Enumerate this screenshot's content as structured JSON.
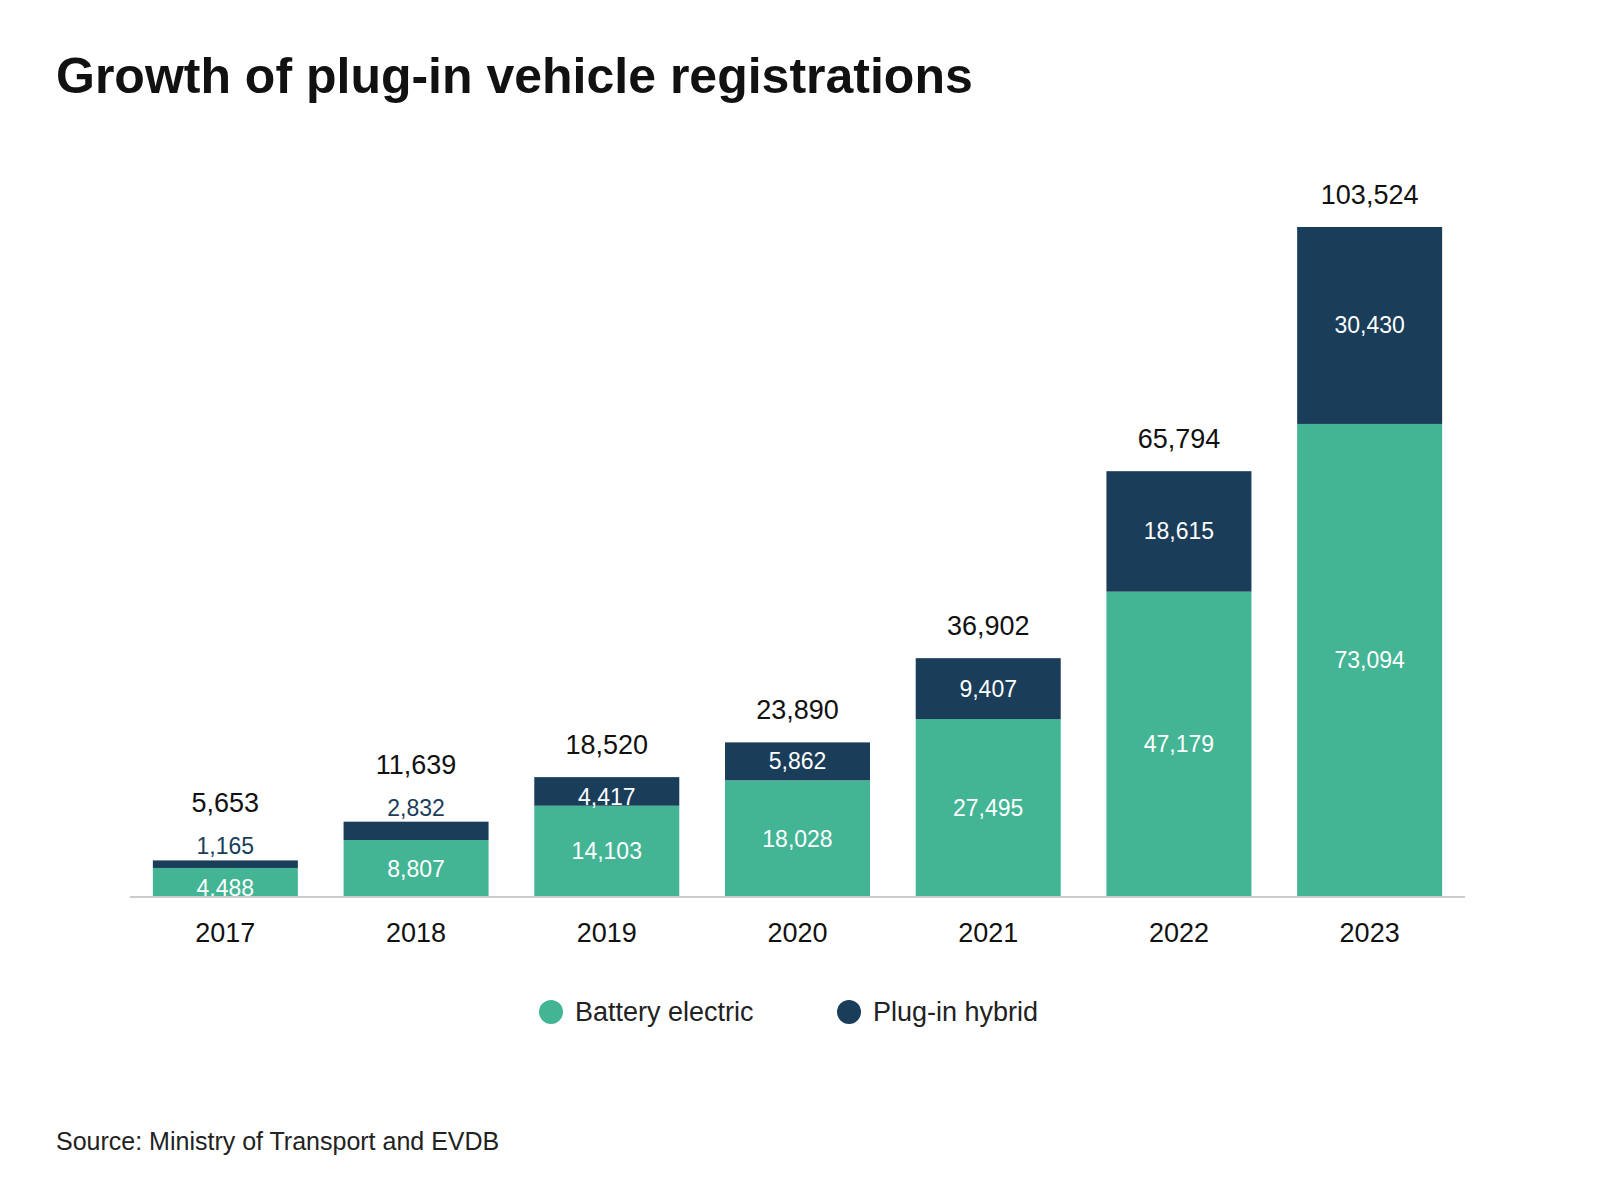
{
  "chart_data": {
    "type": "bar",
    "title": "Growth of plug-in vehicle registrations",
    "source": "Source: Ministry of Transport and EVDB",
    "categories": [
      "2017",
      "2018",
      "2019",
      "2020",
      "2021",
      "2022",
      "2023"
    ],
    "series": [
      {
        "name": "Battery electric",
        "color": "#43b594",
        "values": [
          4488,
          8807,
          14103,
          18028,
          27495,
          47179,
          73094
        ],
        "value_labels": [
          "4,488",
          "8,807",
          "14,103",
          "18,028",
          "27,495",
          "47,179",
          "73,094"
        ]
      },
      {
        "name": "Plug-in hybrid",
        "color": "#1a3d5a",
        "values": [
          1165,
          2832,
          4417,
          5862,
          9407,
          18615,
          30430
        ],
        "value_labels": [
          "1,165",
          "2,832",
          "4,417",
          "5,862",
          "9,407",
          "18,615",
          "30,430"
        ]
      }
    ],
    "totals": [
      5653,
      11639,
      18520,
      23890,
      36902,
      65794,
      103524
    ],
    "total_labels": [
      "5,653",
      "11,639",
      "18,520",
      "23,890",
      "36,902",
      "65,794",
      "103,524"
    ],
    "ylim": [
      0,
      110000
    ],
    "stacked": true,
    "data_labels": true,
    "tick_labels": "x",
    "grid": false
  }
}
